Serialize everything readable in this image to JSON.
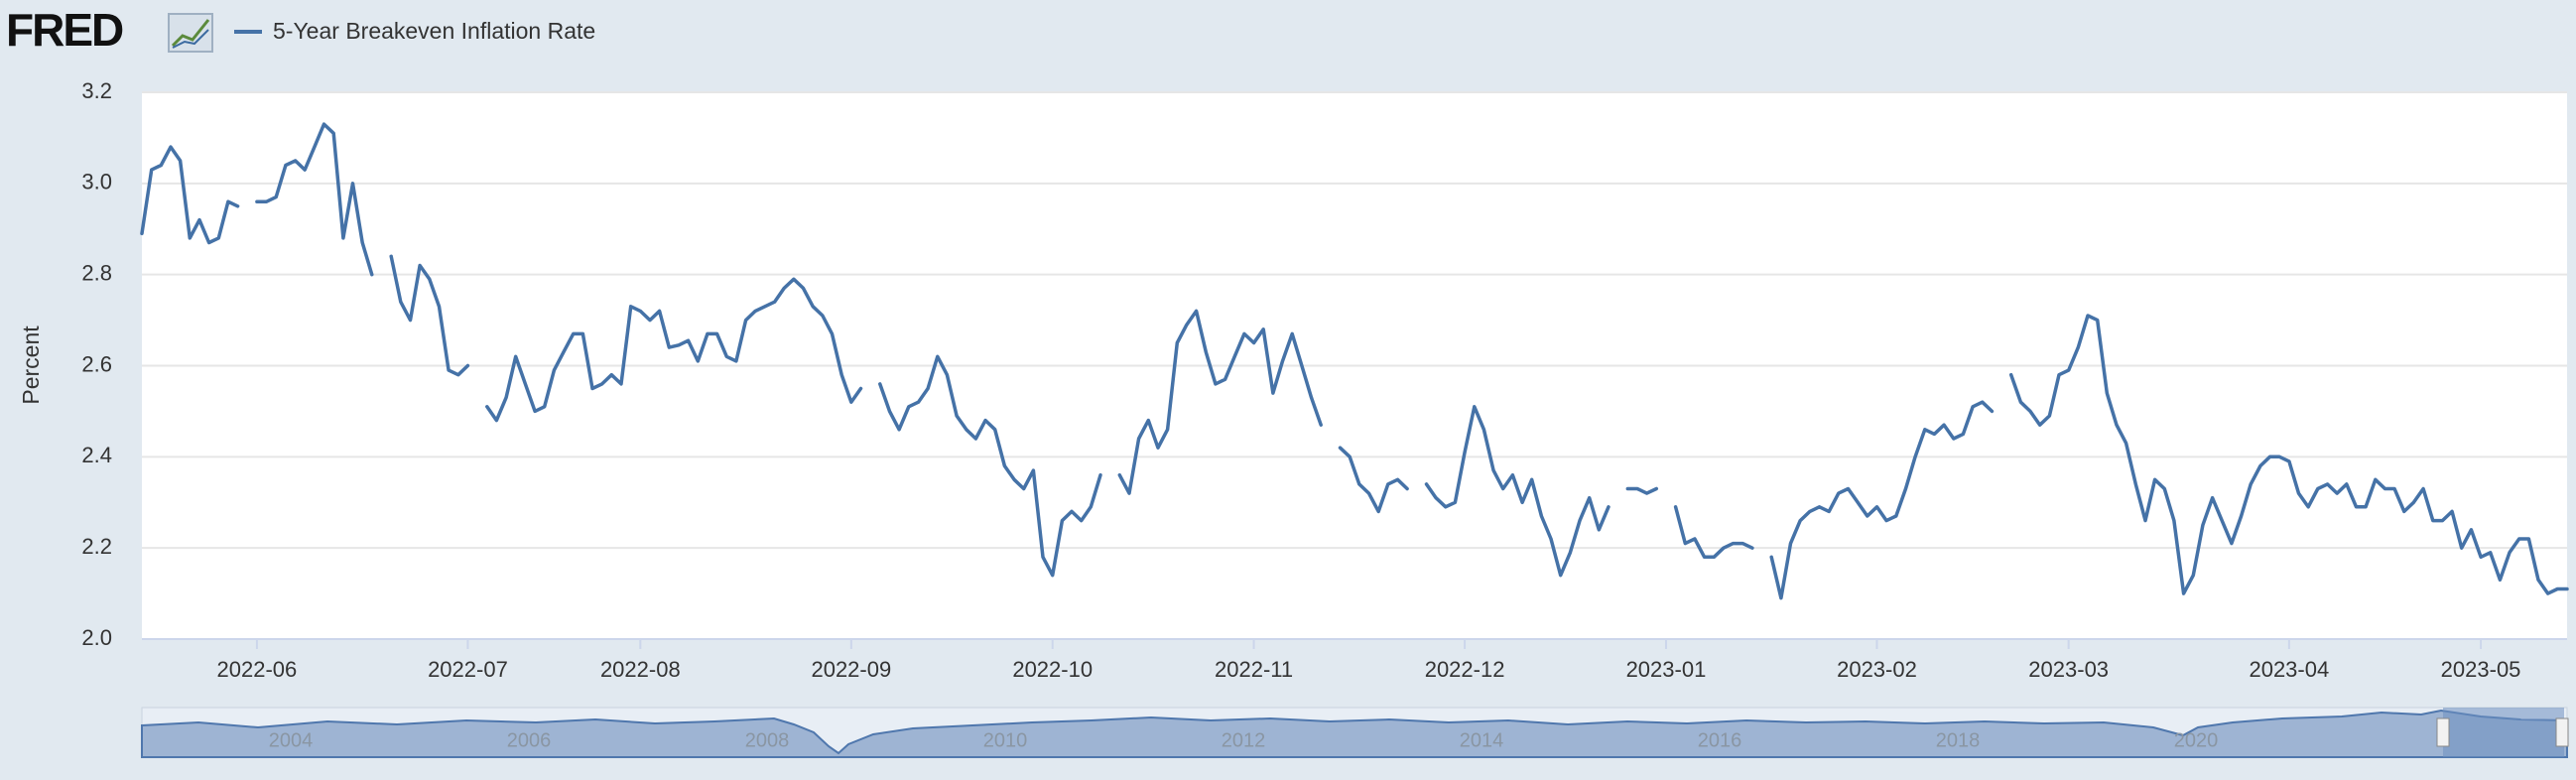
{
  "logo": "FRED",
  "chart_data": {
    "type": "line",
    "categories": [
      null,
      null,
      null,
      null,
      null,
      null,
      null,
      null,
      null,
      null,
      null,
      null,
      "2022-06",
      null,
      null,
      null,
      null,
      null,
      null,
      null,
      null,
      null,
      null,
      null,
      null,
      null,
      null,
      null,
      null,
      null,
      null,
      null,
      null,
      null,
      "2022-07",
      null,
      null,
      null,
      null,
      null,
      null,
      null,
      null,
      null,
      null,
      null,
      null,
      null,
      null,
      null,
      null,
      null,
      "2022-08",
      null,
      null,
      null,
      null,
      null,
      null,
      null,
      null,
      null,
      null,
      null,
      null,
      null,
      null,
      null,
      null,
      null,
      null,
      null,
      null,
      null,
      "2022-09",
      null,
      null,
      null,
      null,
      null,
      null,
      null,
      null,
      null,
      null,
      null,
      null,
      null,
      null,
      null,
      null,
      null,
      null,
      null,
      null,
      "2022-10",
      null,
      null,
      null,
      null,
      null,
      null,
      null,
      null,
      null,
      null,
      null,
      null,
      null,
      null,
      null,
      null,
      null,
      null,
      null,
      null,
      "2022-11",
      null,
      null,
      null,
      null,
      null,
      null,
      null,
      null,
      null,
      null,
      null,
      null,
      null,
      null,
      null,
      null,
      null,
      null,
      null,
      null,
      null,
      "2022-12",
      null,
      null,
      null,
      null,
      null,
      null,
      null,
      null,
      null,
      null,
      null,
      null,
      null,
      null,
      null,
      null,
      null,
      null,
      null,
      null,
      "2023-01",
      null,
      null,
      null,
      null,
      null,
      null,
      null,
      null,
      null,
      null,
      null,
      null,
      null,
      null,
      null,
      null,
      null,
      null,
      null,
      null,
      null,
      "2023-02",
      null,
      null,
      null,
      null,
      null,
      null,
      null,
      null,
      null,
      null,
      null,
      null,
      null,
      null,
      null,
      null,
      null,
      null,
      null,
      "2023-03",
      null,
      null,
      null,
      null,
      null,
      null,
      null,
      null,
      null,
      null,
      null,
      null,
      null,
      null,
      null,
      null,
      null,
      null,
      null,
      null,
      null,
      null,
      "2023-04",
      null,
      null,
      null,
      null,
      null,
      null,
      null,
      null,
      null,
      null,
      null,
      null,
      null,
      null,
      null,
      null,
      null,
      null,
      null,
      "2023-05",
      null,
      null,
      null,
      null,
      null,
      null,
      null,
      null,
      null
    ],
    "series": [
      {
        "name": "5-Year Breakeven Inflation Rate",
        "color": "#4572a7",
        "values": [
          2.89,
          3.03,
          3.04,
          3.08,
          3.05,
          2.88,
          2.92,
          2.87,
          2.88,
          2.96,
          2.95,
          null,
          2.96,
          2.96,
          2.97,
          3.04,
          3.05,
          3.03,
          3.08,
          3.13,
          3.11,
          2.88,
          3.0,
          2.87,
          2.8,
          null,
          2.84,
          2.74,
          2.7,
          2.82,
          2.79,
          2.73,
          2.59,
          2.58,
          2.6,
          null,
          2.51,
          2.48,
          2.53,
          2.62,
          2.56,
          2.5,
          2.51,
          2.59,
          2.63,
          2.67,
          2.67,
          2.55,
          2.56,
          2.58,
          2.56,
          2.73,
          2.72,
          2.7,
          2.72,
          2.64,
          2.645,
          2.655,
          2.61,
          2.67,
          2.67,
          2.62,
          2.61,
          2.7,
          2.72,
          2.73,
          2.74,
          2.77,
          2.79,
          2.77,
          2.73,
          2.71,
          2.67,
          2.58,
          2.52,
          2.55,
          null,
          2.56,
          2.5,
          2.46,
          2.51,
          2.52,
          2.55,
          2.62,
          2.58,
          2.49,
          2.46,
          2.44,
          2.48,
          2.46,
          2.38,
          2.35,
          2.33,
          2.37,
          2.18,
          2.14,
          2.26,
          2.28,
          2.26,
          2.29,
          2.36,
          null,
          2.36,
          2.32,
          2.44,
          2.48,
          2.42,
          2.46,
          2.65,
          2.69,
          2.72,
          2.63,
          2.56,
          2.57,
          2.62,
          2.67,
          2.65,
          2.68,
          2.54,
          2.61,
          2.67,
          2.6,
          2.53,
          2.47,
          null,
          2.42,
          2.4,
          2.34,
          2.32,
          2.28,
          2.34,
          2.35,
          2.33,
          null,
          2.34,
          2.31,
          2.29,
          2.3,
          2.41,
          2.51,
          2.46,
          2.37,
          2.33,
          2.36,
          2.3,
          2.35,
          2.27,
          2.22,
          2.14,
          2.19,
          2.26,
          2.31,
          2.24,
          2.29,
          null,
          2.33,
          2.33,
          2.32,
          2.33,
          null,
          2.29,
          2.21,
          2.22,
          2.18,
          2.18,
          2.2,
          2.21,
          2.21,
          2.2,
          null,
          2.18,
          2.09,
          2.21,
          2.26,
          2.28,
          2.29,
          2.28,
          2.32,
          2.33,
          2.3,
          2.27,
          2.29,
          2.26,
          2.27,
          2.33,
          2.4,
          2.46,
          2.45,
          2.47,
          2.44,
          2.45,
          2.51,
          2.52,
          2.5,
          null,
          2.58,
          2.52,
          2.5,
          2.47,
          2.49,
          2.58,
          2.59,
          2.64,
          2.71,
          2.7,
          2.54,
          2.47,
          2.43,
          2.34,
          2.26,
          2.35,
          2.33,
          2.26,
          2.1,
          2.14,
          2.25,
          2.31,
          2.26,
          2.21,
          2.27,
          2.34,
          2.38,
          2.4,
          2.4,
          2.39,
          2.32,
          2.29,
          2.33,
          2.34,
          2.32,
          2.34,
          2.29,
          2.29,
          2.35,
          2.33,
          2.33,
          2.28,
          2.3,
          2.33,
          2.26,
          2.26,
          2.28,
          2.2,
          2.24,
          2.18,
          2.19,
          2.13,
          2.19,
          2.22,
          2.22,
          2.13,
          2.1,
          2.11,
          2.11
        ]
      }
    ],
    "y_label": "Percent",
    "ylim": [
      2,
      3.2
    ],
    "yticks": [
      {
        "value": 2,
        "label": "2.0"
      },
      2.2,
      2.4,
      2.6,
      2.8,
      {
        "value": 3,
        "label": "3.0"
      },
      3.2
    ],
    "grid": true
  },
  "navigator": {
    "labels": [
      "2004",
      "2006",
      "2008",
      "2010",
      "2012",
      "2014",
      "2016",
      "2018",
      "2020"
    ]
  }
}
